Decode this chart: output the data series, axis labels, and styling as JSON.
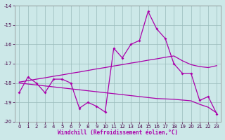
{
  "xlabel": "Windchill (Refroidissement éolien,°C)",
  "bg_color": "#cce8e8",
  "line_color": "#aa00aa",
  "grid_color": "#99bbbb",
  "xlim": [
    -0.5,
    23.5
  ],
  "ylim": [
    -20,
    -14
  ],
  "yticks": [
    -20,
    -19,
    -18,
    -17,
    -16,
    -15,
    -14
  ],
  "xticks": [
    0,
    1,
    2,
    3,
    4,
    5,
    6,
    7,
    8,
    9,
    10,
    11,
    12,
    13,
    14,
    15,
    16,
    17,
    18,
    19,
    20,
    21,
    22,
    23
  ],
  "line1": [
    -18.5,
    -17.7,
    -18.0,
    -18.5,
    -17.8,
    -17.8,
    -18.0,
    -19.3,
    -19.0,
    -19.2,
    -19.5,
    -16.2,
    -16.7,
    -16.0,
    -15.8,
    -14.3,
    -15.2,
    -15.7,
    -17.0,
    -17.5,
    -17.5,
    -18.9,
    -18.7,
    -19.6
  ],
  "line2": [
    -17.95,
    -17.88,
    -17.8,
    -17.73,
    -17.65,
    -17.58,
    -17.5,
    -17.43,
    -17.35,
    -17.27,
    -17.2,
    -17.12,
    -17.05,
    -16.97,
    -16.9,
    -16.82,
    -16.75,
    -16.67,
    -16.6,
    -16.85,
    -17.05,
    -17.15,
    -17.2,
    -17.1
  ],
  "line3": [
    -18.0,
    -18.05,
    -18.1,
    -18.15,
    -18.2,
    -18.25,
    -18.3,
    -18.35,
    -18.4,
    -18.45,
    -18.5,
    -18.55,
    -18.6,
    -18.65,
    -18.7,
    -18.75,
    -18.8,
    -18.82,
    -18.84,
    -18.88,
    -18.92,
    -19.1,
    -19.25,
    -19.55
  ]
}
